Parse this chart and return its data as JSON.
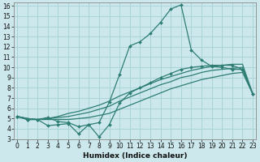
{
  "xlabel": "Humidex (Indice chaleur)",
  "background_color": "#cce8ec",
  "grid_color": "#aad4d8",
  "line_color": "#2d7d74",
  "x_values": [
    0,
    1,
    2,
    3,
    4,
    5,
    6,
    7,
    8,
    9,
    10,
    11,
    12,
    13,
    14,
    15,
    16,
    17,
    18,
    19,
    20,
    21,
    22,
    23
  ],
  "curve_spike": [
    5.2,
    4.9,
    4.9,
    5.1,
    4.7,
    4.6,
    4.2,
    4.4,
    4.6,
    6.6,
    9.3,
    12.1,
    12.5,
    13.3,
    14.4,
    15.7,
    16.1,
    11.7,
    10.7,
    10.1,
    10.0,
    9.8,
    9.8,
    7.4
  ],
  "curve_jagged": [
    5.2,
    4.9,
    4.9,
    4.3,
    4.4,
    4.5,
    3.5,
    4.4,
    3.2,
    4.4,
    6.5,
    7.5,
    8.0,
    8.5,
    9.0,
    9.4,
    9.8,
    10.0,
    10.1,
    10.2,
    10.2,
    10.2,
    9.8,
    7.4
  ],
  "curve_line1": [
    5.2,
    5.0,
    4.9,
    4.9,
    4.9,
    4.9,
    5.0,
    5.1,
    5.3,
    5.5,
    5.9,
    6.3,
    6.7,
    7.1,
    7.5,
    7.9,
    8.2,
    8.5,
    8.8,
    9.0,
    9.2,
    9.4,
    9.5,
    7.4
  ],
  "curve_line2": [
    5.2,
    5.0,
    4.9,
    5.0,
    5.1,
    5.2,
    5.4,
    5.6,
    5.9,
    6.2,
    6.7,
    7.1,
    7.5,
    7.9,
    8.3,
    8.6,
    9.0,
    9.2,
    9.5,
    9.7,
    9.8,
    9.9,
    10.0,
    7.4
  ],
  "curve_line3": [
    5.2,
    5.0,
    4.9,
    5.0,
    5.2,
    5.5,
    5.7,
    6.0,
    6.3,
    6.7,
    7.2,
    7.6,
    8.0,
    8.4,
    8.8,
    9.1,
    9.4,
    9.7,
    9.9,
    10.1,
    10.2,
    10.3,
    10.3,
    7.4
  ],
  "ylim_min": 3,
  "ylim_max": 16,
  "yticks": [
    3,
    4,
    5,
    6,
    7,
    8,
    9,
    10,
    11,
    12,
    13,
    14,
    15,
    16
  ],
  "xticks": [
    0,
    1,
    2,
    3,
    4,
    5,
    6,
    7,
    8,
    9,
    10,
    11,
    12,
    13,
    14,
    15,
    16,
    17,
    18,
    19,
    20,
    21,
    22,
    23
  ],
  "tick_fontsize": 5.5,
  "xlabel_fontsize": 6.5
}
